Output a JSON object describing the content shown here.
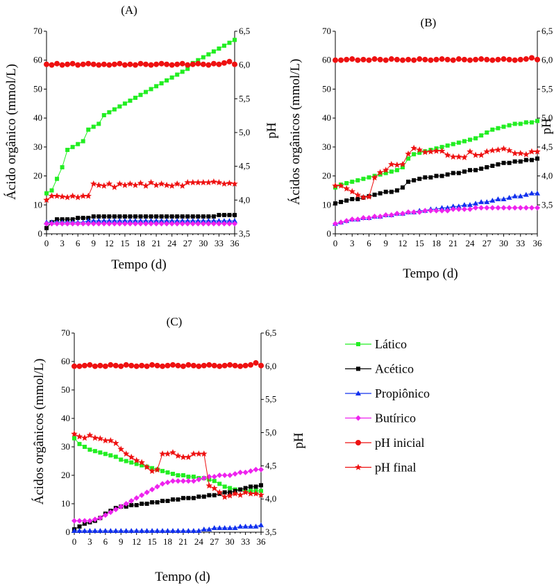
{
  "legend": {
    "items": [
      {
        "label": "Lático",
        "color": "#22ee22",
        "marker": "square"
      },
      {
        "label": "Acético",
        "color": "#000000",
        "marker": "square"
      },
      {
        "label": "Propiônico",
        "color": "#1030ee",
        "marker": "triangle"
      },
      {
        "label": "Butírico",
        "color": "#ee22ee",
        "marker": "diamond"
      },
      {
        "label": "pH inicial",
        "color": "#ee1111",
        "marker": "circle"
      },
      {
        "label": "pH final",
        "color": "#ee1111",
        "marker": "star"
      }
    ]
  },
  "chart_data": [
    {
      "panel": "(A)",
      "type": "line",
      "x": [
        0,
        1,
        2,
        3,
        4,
        5,
        6,
        7,
        8,
        9,
        10,
        11,
        12,
        13,
        14,
        15,
        16,
        17,
        18,
        19,
        20,
        21,
        22,
        23,
        24,
        25,
        26,
        27,
        28,
        29,
        30,
        31,
        32,
        33,
        34,
        35,
        36
      ],
      "xticks": [
        0,
        3,
        6,
        9,
        12,
        15,
        18,
        21,
        24,
        27,
        30,
        33,
        36
      ],
      "xlim": [
        0,
        36
      ],
      "xlabel": "Tempo (d)",
      "ylabel": "Ácido orgânico (mmol/L)",
      "ylim": [
        0,
        70
      ],
      "yticks": [
        0,
        10,
        20,
        30,
        40,
        50,
        60,
        70
      ],
      "y2label": "pH",
      "y2lim": [
        3.5,
        6.5
      ],
      "y2ticks": [
        "3,5",
        "4,0",
        "4,5",
        "5,0",
        "5,5",
        "6,0",
        "6,5"
      ],
      "series": [
        {
          "name": "Lático",
          "axis": "left",
          "values": [
            14,
            15,
            19,
            23,
            29,
            30,
            31,
            32,
            36,
            37,
            38,
            41,
            42,
            43,
            44,
            45,
            46,
            47,
            48,
            49,
            50,
            51,
            52,
            53,
            54,
            55,
            56,
            57,
            59,
            60,
            61,
            62,
            63,
            64,
            65,
            66,
            67
          ]
        },
        {
          "name": "Acético",
          "axis": "left",
          "values": [
            2,
            4,
            5,
            5,
            5,
            5,
            5.5,
            5.5,
            5.5,
            6,
            6,
            6,
            6,
            6,
            6,
            6,
            6,
            6,
            6,
            6,
            6,
            6,
            6,
            6,
            6,
            6,
            6,
            6,
            6,
            6,
            6,
            6,
            6,
            6.5,
            6.5,
            6.5,
            6.5
          ]
        },
        {
          "name": "Propiônico",
          "axis": "left",
          "values": [
            4,
            4,
            4,
            4,
            4,
            4,
            4,
            4,
            4.5,
            4.5,
            4.5,
            4.5,
            4.5,
            4.5,
            4.5,
            4.5,
            4.5,
            4.5,
            4.5,
            4.5,
            4.5,
            4.5,
            4.5,
            4.5,
            4.5,
            4.5,
            4.5,
            4.5,
            4.5,
            4.5,
            4.5,
            4.5,
            4.5,
            4.5,
            4.5,
            4.5,
            4.5
          ]
        },
        {
          "name": "Butírico",
          "axis": "left",
          "values": [
            3.5,
            3.5,
            3.5,
            3.5,
            3.5,
            3.5,
            3.5,
            3.5,
            3.5,
            3.5,
            3.5,
            3.5,
            3.5,
            3.5,
            3.5,
            3.5,
            3.5,
            3.5,
            3.5,
            3.5,
            3.5,
            3.5,
            3.5,
            3.5,
            3.5,
            3.5,
            3.5,
            3.5,
            3.5,
            3.5,
            3.5,
            3.5,
            3.5,
            3.5,
            3.5,
            3.5,
            3.5
          ]
        },
        {
          "name": "pH inicial",
          "axis": "right",
          "values": [
            6.01,
            6.0,
            6.02,
            6.0,
            6.01,
            6.02,
            6.0,
            6.01,
            6.02,
            6.01,
            6.0,
            6.01,
            6.0,
            6.01,
            6.02,
            6.0,
            6.01,
            6.0,
            6.02,
            6.01,
            6.0,
            6.01,
            6.02,
            6.01,
            6.0,
            6.01,
            6.02,
            6.0,
            6.01,
            6.02,
            6.01,
            6.0,
            6.02,
            6.01,
            6.03,
            6.05,
            6.01
          ]
        },
        {
          "name": "pH final",
          "axis": "right",
          "values": [
            4.0,
            4.06,
            4.06,
            4.05,
            4.04,
            4.06,
            4.04,
            4.06,
            4.06,
            4.24,
            4.22,
            4.21,
            4.24,
            4.19,
            4.24,
            4.22,
            4.24,
            4.22,
            4.25,
            4.21,
            4.26,
            4.22,
            4.24,
            4.22,
            4.21,
            4.24,
            4.21,
            4.26,
            4.26,
            4.26,
            4.26,
            4.26,
            4.27,
            4.26,
            4.24,
            4.25,
            4.24
          ]
        }
      ]
    },
    {
      "panel": "(B)",
      "type": "line",
      "x": [
        0,
        1,
        2,
        3,
        4,
        5,
        6,
        7,
        8,
        9,
        10,
        11,
        12,
        13,
        14,
        15,
        16,
        17,
        18,
        19,
        20,
        21,
        22,
        23,
        24,
        25,
        26,
        27,
        28,
        29,
        30,
        31,
        32,
        33,
        34,
        35,
        36
      ],
      "xticks": [
        0,
        3,
        6,
        9,
        12,
        15,
        18,
        21,
        24,
        27,
        30,
        33,
        36
      ],
      "xlim": [
        0,
        36
      ],
      "xlabel": "Tempo (d)",
      "ylabel": "Ácidos orgânicos (mmol/L)",
      "ylim": [
        0,
        70
      ],
      "yticks": [
        0,
        10,
        20,
        30,
        40,
        50,
        60,
        70
      ],
      "y2label": "pH",
      "y2lim": [
        3.0,
        6.5
      ],
      "y2ticks": [
        "3,5",
        "4,0",
        "4,5",
        "5,0",
        "5,5",
        "6,0",
        "6,5"
      ],
      "series": [
        {
          "name": "Lático",
          "axis": "left",
          "values": [
            16,
            17,
            17.5,
            18,
            18.5,
            19,
            19.5,
            20,
            20.5,
            21,
            21.5,
            22,
            23,
            26,
            27.5,
            28,
            28.5,
            29,
            29.5,
            30,
            30.5,
            31,
            31.5,
            32,
            32.5,
            33,
            34,
            35,
            36,
            36.5,
            37,
            37.5,
            38,
            38,
            38.5,
            38.5,
            39
          ]
        },
        {
          "name": "Acético",
          "axis": "left",
          "values": [
            10.5,
            11,
            11.5,
            12,
            12,
            12.5,
            13,
            13.5,
            14,
            14.5,
            14.5,
            15,
            16,
            18,
            18.5,
            19,
            19.5,
            19.5,
            20,
            20,
            20.5,
            21,
            21,
            21.5,
            22,
            22,
            22.5,
            23,
            23.5,
            24,
            24.5,
            24.5,
            25,
            25,
            25.5,
            25.5,
            26
          ]
        },
        {
          "name": "Propiônico",
          "axis": "left",
          "values": [
            3.5,
            4,
            4.5,
            5,
            5,
            5.5,
            5.5,
            6,
            6,
            6.5,
            6.5,
            7,
            7,
            7.5,
            7.5,
            8,
            8,
            8.5,
            8.5,
            9,
            9,
            9.5,
            9.5,
            10,
            10,
            10.5,
            11,
            11,
            11.5,
            12,
            12,
            12.5,
            13,
            13,
            13.5,
            14,
            14
          ]
        },
        {
          "name": "Butírico",
          "axis": "left",
          "values": [
            3.5,
            4,
            4.5,
            5,
            5,
            5.5,
            5.5,
            6,
            6,
            6.5,
            6.5,
            7,
            7,
            7.5,
            7.5,
            7.5,
            8,
            8,
            8,
            8,
            8,
            8.5,
            8.5,
            8.5,
            8.5,
            9,
            9,
            9,
            9,
            9,
            9,
            9,
            9,
            9,
            9,
            9,
            9
          ]
        },
        {
          "name": "pH inicial",
          "axis": "right",
          "values": [
            6.0,
            6.0,
            6.01,
            6.02,
            6.0,
            6.01,
            6.0,
            6.02,
            6.01,
            6.0,
            6.02,
            6.01,
            6.0,
            6.01,
            6.0,
            6.02,
            6.01,
            6.0,
            6.01,
            6.02,
            6.01,
            6.0,
            6.02,
            6.01,
            6.0,
            6.01,
            6.02,
            6.01,
            6.0,
            6.01,
            6.02,
            6.01,
            6.0,
            6.01,
            6.02,
            6.04,
            6.01
          ]
        },
        {
          "name": "pH final",
          "axis": "right",
          "values": [
            3.83,
            3.83,
            3.78,
            3.73,
            3.67,
            3.63,
            3.64,
            3.97,
            4.06,
            4.1,
            4.2,
            4.19,
            4.2,
            4.38,
            4.48,
            4.45,
            4.41,
            4.42,
            4.43,
            4.43,
            4.36,
            4.33,
            4.33,
            4.32,
            4.42,
            4.36,
            4.36,
            4.42,
            4.44,
            4.45,
            4.47,
            4.44,
            4.39,
            4.39,
            4.37,
            4.42,
            4.42
          ]
        }
      ]
    },
    {
      "panel": "(C)",
      "type": "line",
      "x": [
        0,
        1,
        2,
        3,
        4,
        5,
        6,
        7,
        8,
        9,
        10,
        11,
        12,
        13,
        14,
        15,
        16,
        17,
        18,
        19,
        20,
        21,
        22,
        23,
        24,
        25,
        26,
        27,
        28,
        29,
        30,
        31,
        32,
        33,
        34,
        35,
        36
      ],
      "xticks": [
        0,
        3,
        6,
        9,
        12,
        15,
        18,
        21,
        24,
        27,
        30,
        33,
        36
      ],
      "xlim": [
        0,
        36
      ],
      "xlabel": "Tempo (d)",
      "ylabel": "Ácidos orgânicos (mmol/L)",
      "ylim": [
        0,
        70
      ],
      "yticks": [
        0,
        10,
        20,
        30,
        40,
        50,
        60,
        70
      ],
      "y2label": "pH",
      "y2lim": [
        3.5,
        6.5
      ],
      "y2ticks": [
        "3,5",
        "4,0",
        "4,5",
        "5,0",
        "5,5",
        "6,0",
        "6,5"
      ],
      "series": [
        {
          "name": "Lático",
          "axis": "left",
          "values": [
            33,
            31,
            30,
            29,
            28.5,
            28,
            27.5,
            27,
            26.5,
            25.5,
            25,
            24.5,
            24,
            23.5,
            23,
            22.5,
            22,
            21.5,
            21,
            20.5,
            20,
            20,
            19.5,
            19.5,
            19,
            19,
            18.5,
            18,
            17,
            16,
            15.5,
            15,
            15,
            14.5,
            14.5,
            14.5,
            14.5
          ]
        },
        {
          "name": "Acético",
          "axis": "left",
          "values": [
            1,
            2,
            3,
            3.5,
            4,
            5,
            6.5,
            7.5,
            8.5,
            9,
            9,
            9.5,
            9.5,
            10,
            10,
            10.5,
            10.5,
            11,
            11,
            11.5,
            11.5,
            12,
            12,
            12,
            12.5,
            12.5,
            13,
            13,
            13.5,
            14,
            14,
            14.5,
            15,
            15.5,
            16,
            16,
            16.5
          ]
        },
        {
          "name": "Propiônico",
          "axis": "left",
          "values": [
            0.5,
            0.5,
            0.5,
            0.5,
            0.5,
            0.5,
            0.5,
            0.5,
            0.5,
            0.5,
            0.5,
            0.5,
            0.5,
            0.5,
            0.5,
            0.5,
            0.5,
            0.5,
            0.5,
            0.5,
            0.5,
            0.5,
            0.5,
            0.5,
            0.5,
            1,
            1,
            1.5,
            1.5,
            1.5,
            1.5,
            1.5,
            2,
            2,
            2,
            2,
            2.5
          ]
        },
        {
          "name": "Butírico",
          "axis": "left",
          "values": [
            4,
            4,
            4,
            4,
            4.5,
            5,
            6,
            7,
            8,
            9,
            10,
            11,
            12,
            13,
            14,
            15,
            16,
            17,
            17.5,
            18,
            18,
            18,
            18,
            18,
            18.5,
            19,
            19.5,
            19.5,
            20,
            20,
            20,
            20.5,
            21,
            21,
            21.5,
            22,
            22
          ]
        },
        {
          "name": "pH inicial",
          "axis": "right",
          "values": [
            6.0,
            6.0,
            6.01,
            6.02,
            6.0,
            6.01,
            6.0,
            6.02,
            6.01,
            6.0,
            6.02,
            6.01,
            6.0,
            6.01,
            6.0,
            6.02,
            6.01,
            6.0,
            6.01,
            6.02,
            6.01,
            6.0,
            6.02,
            6.01,
            6.0,
            6.01,
            6.02,
            6.01,
            6.0,
            6.01,
            6.02,
            6.01,
            6.0,
            6.01,
            6.02,
            6.05,
            6.01
          ]
        },
        {
          "name": "pH final",
          "axis": "right",
          "values": [
            4.98,
            4.94,
            4.92,
            4.96,
            4.92,
            4.91,
            4.88,
            4.88,
            4.84,
            4.75,
            4.68,
            4.63,
            4.58,
            4.55,
            4.48,
            4.42,
            4.44,
            4.68,
            4.68,
            4.7,
            4.65,
            4.63,
            4.63,
            4.68,
            4.68,
            4.68,
            4.2,
            4.16,
            4.1,
            4.03,
            4.05,
            4.08,
            4.06,
            4.1,
            4.08,
            4.08,
            4.06
          ]
        }
      ]
    }
  ]
}
